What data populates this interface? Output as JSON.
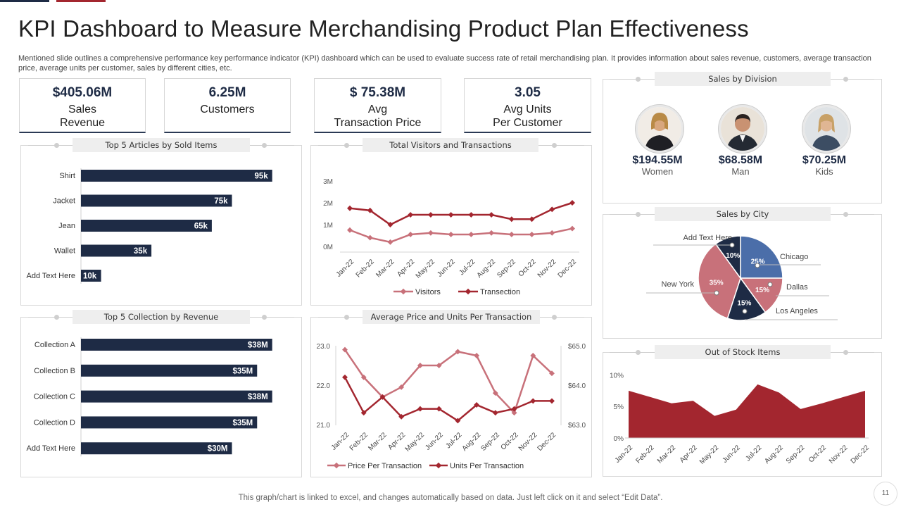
{
  "colors": {
    "navy": "#1e2b45",
    "red": "#a3262f",
    "pink": "#c8717a",
    "blue": "#4b6ea9",
    "panelTitleBg": "#eeeeee"
  },
  "title": "KPI Dashboard to Measure Merchandising Product Plan Effectiveness",
  "subtitle": "Mentioned slide outlines a comprehensive performance key performance indicator (KPI) dashboard which can be used to evaluate success rate of retail merchandising plan. It provides information about sales revenue, customers, average transaction price, average units per customer, sales by different cities, etc.",
  "kpis": [
    {
      "value": "$405.06M",
      "label": "Sales\nRevenue"
    },
    {
      "value": "6.25M",
      "label": "Customers"
    },
    {
      "value": "$ 75.38M",
      "label": "Avg\nTransaction Price"
    },
    {
      "value": "3.05",
      "label": "Avg Units\nPer Customer"
    }
  ],
  "division": {
    "title": "Sales by Division",
    "items": [
      {
        "value": "$194.55M",
        "label": "Women",
        "icon": "woman-avatar-icon"
      },
      {
        "value": "$68.58M",
        "label": "Man",
        "icon": "man-avatar-icon"
      },
      {
        "value": "$70.25M",
        "label": "Kids",
        "icon": "kid-avatar-icon"
      }
    ]
  },
  "footer": "This graph/chart is linked to excel,  and changes automatically based on data. Just left click on it and select “Edit Data”.",
  "page_number": "11",
  "chart_data": [
    {
      "id": "articles",
      "type": "bar",
      "orientation": "horizontal",
      "title": "Top 5 Articles by Sold Items",
      "categories": [
        "Shirt",
        "Jacket",
        "Jean",
        "Wallet",
        "Add Text Here"
      ],
      "values": [
        95,
        75,
        65,
        35,
        10
      ],
      "labels": [
        "95k",
        "75k",
        "65k",
        "35k",
        "10k"
      ],
      "xlim": [
        0,
        100
      ]
    },
    {
      "id": "collections",
      "type": "bar",
      "orientation": "horizontal",
      "title": "Top 5 Collection by Revenue",
      "categories": [
        "Collection A",
        "Collection B",
        "Collection C",
        "Collection D",
        "Add Text Here"
      ],
      "values": [
        38,
        35,
        38,
        35,
        30
      ],
      "labels": [
        "$38M",
        "$35M",
        "$38M",
        "$35M",
        "$30M"
      ],
      "xlim": [
        0,
        40
      ]
    },
    {
      "id": "visitors",
      "type": "line",
      "title": "Total Visitors and Transactions",
      "categories": [
        "Jan-22",
        "Feb-22",
        "Mar-22",
        "Apr-22",
        "May-22",
        "Jun-22",
        "Jul-22",
        "Aug-22",
        "Sep-22",
        "Oct-22",
        "Nov-22",
        "Dec-22"
      ],
      "yticks": [
        "0M",
        "1M",
        "2M",
        "3M"
      ],
      "ylim": [
        0,
        3
      ],
      "series": [
        {
          "name": "Visitors",
          "color": "#c8717a",
          "values": [
            0.75,
            0.4,
            0.2,
            0.55,
            0.62,
            0.55,
            0.55,
            0.62,
            0.55,
            0.55,
            0.62,
            0.82
          ]
        },
        {
          "name": "Transection",
          "color": "#a3262f",
          "values": [
            1.75,
            1.65,
            1.0,
            1.45,
            1.45,
            1.45,
            1.45,
            1.45,
            1.25,
            1.25,
            1.7,
            2.0
          ]
        }
      ]
    },
    {
      "id": "avgprice",
      "type": "line",
      "title": "Average Price and Units Per Transaction",
      "categories": [
        "Jan-22",
        "Feb-22",
        "Mar-22",
        "Apr-22",
        "May-22",
        "Jun-22",
        "Jul-22",
        "Aug-22",
        "Sep-22",
        "Oct-22",
        "Nov-22",
        "Dec-22"
      ],
      "yticks_left": [
        "21.0",
        "22.0",
        "23.0"
      ],
      "ylim_left": [
        21,
        23
      ],
      "yticks_right": [
        "$63.0",
        "$64.0",
        "$65.0"
      ],
      "ylim_right": [
        63,
        65
      ],
      "series": [
        {
          "name": "Price Per Transaction",
          "axis": "left",
          "color": "#c8717a",
          "values": [
            22.9,
            22.2,
            21.7,
            21.95,
            22.5,
            22.5,
            22.85,
            22.75,
            21.8,
            21.3,
            22.75,
            22.3
          ]
        },
        {
          "name": "Units Per Transaction",
          "axis": "right",
          "color": "#a3262f",
          "values": [
            64.2,
            63.3,
            63.7,
            63.2,
            63.4,
            63.4,
            63.1,
            63.5,
            63.3,
            63.4,
            63.6,
            63.6
          ]
        }
      ]
    },
    {
      "id": "city",
      "type": "pie",
      "title": "Sales by City",
      "slices": [
        {
          "label": "Chicago",
          "value": 25,
          "display": "25%",
          "color": "#4b6ea9"
        },
        {
          "label": "Dallas",
          "value": 15,
          "display": "15%",
          "color": "#c8717a"
        },
        {
          "label": "Los Angeles",
          "value": 15,
          "display": "15%",
          "color": "#1e2b45"
        },
        {
          "label": "New York",
          "value": 35,
          "display": "35%",
          "color": "#c8717a"
        },
        {
          "label": "Add Text Here",
          "value": 10,
          "display": "10%",
          "color": "#1e2b45"
        }
      ]
    },
    {
      "id": "stock",
      "type": "area",
      "title": "Out of Stock Items",
      "categories": [
        "Jan-22",
        "Feb-22",
        "Mar-22",
        "Apr-22",
        "May-22",
        "Jun-22",
        "Jul-22",
        "Aug-22",
        "Sep-22",
        "Oct-22",
        "Nov-22",
        "Dec-22"
      ],
      "yticks": [
        "0%",
        "5%",
        "10%"
      ],
      "ylim": [
        0,
        10.5
      ],
      "values": [
        7.5,
        6.5,
        5.5,
        5.9,
        3.5,
        4.5,
        8.5,
        7.2,
        4.6,
        5.5,
        6.5,
        7.5
      ],
      "color": "#a3262f"
    }
  ]
}
